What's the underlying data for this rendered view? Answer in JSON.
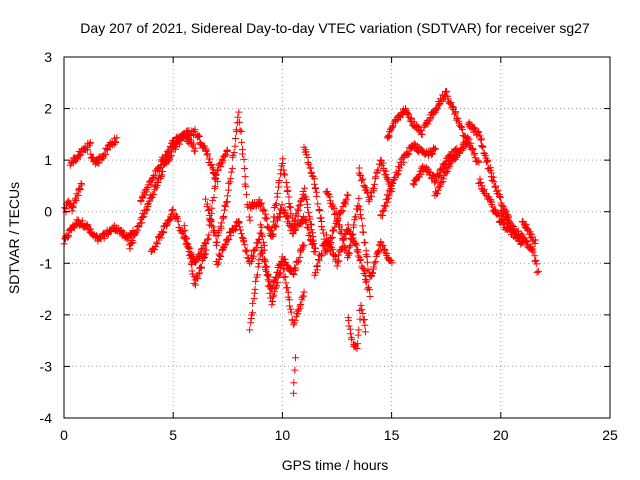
{
  "chart_data": {
    "type": "scatter",
    "title": "Day 207 of 2021, Sidereal Day-to-day VTEC variation (SDTVAR) for receiver sg27",
    "xlabel": "GPS time / hours",
    "ylabel": "SDTVAR / TECUs",
    "xlim": [
      0,
      25
    ],
    "ylim": [
      -4,
      3
    ],
    "x_ticks": [
      0,
      5,
      10,
      15,
      20,
      25
    ],
    "y_ticks": [
      -4,
      -3,
      -2,
      -1,
      0,
      1,
      2,
      3
    ],
    "x_tick_labels": [
      "0",
      "5",
      "10",
      "15",
      "20",
      "25"
    ],
    "y_tick_labels": [
      "-4",
      "-3",
      "-2",
      "-1",
      "0",
      "1",
      "2",
      "3"
    ],
    "grid": true,
    "marker": "+",
    "series": [
      {
        "name": "SDTVAR",
        "color": "#ff0000",
        "traces": [
          {
            "x": [
              0.0,
              0.3,
              0.6,
              1.0,
              1.3,
              1.6,
              2.0,
              2.4,
              2.8,
              3.2
            ],
            "y": [
              -0.6,
              -0.35,
              -0.2,
              -0.25,
              -0.45,
              -0.55,
              -0.4,
              -0.3,
              -0.5,
              -0.4
            ]
          },
          {
            "x": [
              0.0,
              0.2,
              0.4,
              0.6,
              0.8
            ],
            "y": [
              0.0,
              0.15,
              0.05,
              0.3,
              0.55
            ]
          },
          {
            "x": [
              0.3,
              0.6,
              0.9,
              1.2
            ],
            "y": [
              0.95,
              1.05,
              1.2,
              1.3
            ]
          },
          {
            "x": [
              1.2,
              1.5,
              1.8,
              2.1,
              2.4
            ],
            "y": [
              1.1,
              0.95,
              1.1,
              1.3,
              1.4
            ]
          },
          {
            "x": [
              3.0,
              3.5,
              4.0,
              4.5,
              5.0,
              5.5,
              6.0
            ],
            "y": [
              -0.7,
              -0.2,
              0.3,
              0.8,
              1.2,
              1.5,
              1.2
            ]
          },
          {
            "x": [
              3.5,
              4.0,
              4.5,
              5.0,
              5.5,
              6.0,
              6.5,
              7.0
            ],
            "y": [
              0.2,
              0.6,
              1.0,
              1.35,
              1.5,
              1.55,
              1.2,
              0.6
            ]
          },
          {
            "x": [
              4.0,
              4.5,
              5.0,
              5.5,
              6.0,
              6.5
            ],
            "y": [
              -0.8,
              -0.4,
              0.0,
              -0.5,
              -1.0,
              -0.6
            ]
          },
          {
            "x": [
              5.5,
              6.0,
              6.5,
              7.0,
              7.5
            ],
            "y": [
              -0.3,
              -1.4,
              -0.8,
              0.8,
              1.2
            ]
          },
          {
            "x": [
              6.5,
              7.0,
              7.5,
              8.0,
              8.5
            ],
            "y": [
              0.2,
              -0.6,
              0.3,
              1.9,
              -0.2
            ]
          },
          {
            "x": [
              7.0,
              7.5,
              8.0,
              8.5,
              9.0
            ],
            "y": [
              -1.0,
              -0.5,
              -0.2,
              -1.0,
              -0.4
            ]
          },
          {
            "x": [
              8.5,
              9.0,
              9.5,
              10.0,
              10.5,
              11.0
            ],
            "y": [
              -2.3,
              -0.7,
              -1.5,
              -0.9,
              -1.2,
              -0.6
            ]
          },
          {
            "x": [
              8.5,
              9.0,
              9.5,
              10.0,
              10.5,
              11.0,
              11.5
            ],
            "y": [
              0.1,
              0.2,
              -0.5,
              0.1,
              -0.4,
              -0.1,
              -0.8
            ]
          },
          {
            "x": [
              9.0,
              9.5,
              10.0,
              10.5,
              11.0
            ],
            "y": [
              -0.2,
              -1.8,
              -1.0,
              -2.2,
              -1.6
            ]
          },
          {
            "x": [
              9.5,
              10.0,
              10.5,
              11.0,
              11.5
            ],
            "y": [
              -0.4,
              1.0,
              -0.3,
              0.4,
              -0.7
            ]
          },
          {
            "x": [
              10.5,
              10.6
            ],
            "y": [
              -3.5,
              -2.8
            ]
          },
          {
            "x": [
              11.0,
              11.5,
              12.0,
              12.5,
              13.0
            ],
            "y": [
              1.3,
              0.5,
              -0.8,
              -0.2,
              0.3
            ]
          },
          {
            "x": [
              11.5,
              12.0,
              12.5,
              13.0,
              13.5,
              14.0
            ],
            "y": [
              -1.2,
              -0.5,
              -1.0,
              -0.3,
              -0.8,
              -1.6
            ]
          },
          {
            "x": [
              12.0,
              12.5,
              13.0,
              13.5,
              14.0,
              14.5,
              15.0
            ],
            "y": [
              0.4,
              -0.1,
              -0.9,
              0.2,
              -1.3,
              -0.6,
              -1.0
            ]
          },
          {
            "x": [
              13.0,
              13.2,
              13.4,
              13.6,
              13.8
            ],
            "y": [
              -2.0,
              -2.5,
              -2.7,
              -1.8,
              -2.3
            ]
          },
          {
            "x": [
              13.5,
              14.0,
              14.5,
              15.0
            ],
            "y": [
              0.8,
              0.2,
              1.0,
              0.4
            ]
          },
          {
            "x": [
              14.5,
              15.0,
              15.5,
              16.0,
              16.5,
              17.0
            ],
            "y": [
              -0.1,
              0.5,
              1.0,
              1.3,
              1.1,
              1.2
            ]
          },
          {
            "x": [
              14.8,
              15.2,
              15.6,
              16.0,
              16.4
            ],
            "y": [
              1.4,
              1.8,
              2.0,
              1.7,
              1.5
            ]
          },
          {
            "x": [
              16.0,
              16.5,
              17.0,
              17.5,
              18.0
            ],
            "y": [
              0.5,
              0.9,
              0.6,
              1.0,
              1.2
            ]
          },
          {
            "x": [
              16.5,
              17.0,
              17.5,
              18.0,
              18.5
            ],
            "y": [
              1.6,
              2.0,
              2.3,
              1.8,
              1.3
            ]
          },
          {
            "x": [
              17.0,
              17.5,
              18.0,
              18.5,
              19.0
            ],
            "y": [
              0.3,
              0.8,
              1.1,
              1.4,
              0.9
            ]
          },
          {
            "x": [
              18.5,
              19.0,
              19.5,
              20.0,
              20.5
            ],
            "y": [
              1.7,
              1.5,
              0.8,
              0.2,
              -0.3
            ]
          },
          {
            "x": [
              19.0,
              19.5,
              20.0,
              20.5,
              21.0
            ],
            "y": [
              0.6,
              0.2,
              -0.2,
              -0.4,
              -0.6
            ]
          },
          {
            "x": [
              20.0,
              20.5,
              21.0,
              21.5,
              21.7
            ],
            "y": [
              0.0,
              -0.3,
              -0.5,
              -0.8,
              -1.2
            ]
          },
          {
            "x": [
              21.0,
              21.3,
              21.6
            ],
            "y": [
              -0.2,
              -0.4,
              -0.6
            ]
          }
        ]
      }
    ]
  }
}
